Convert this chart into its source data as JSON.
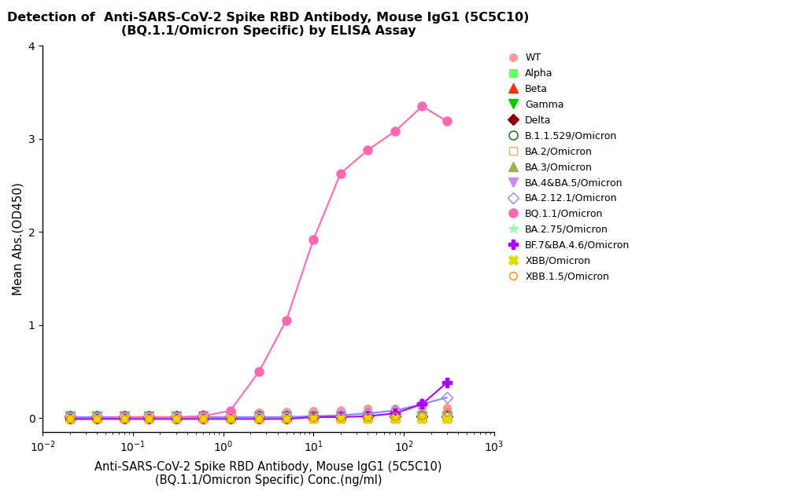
{
  "title_line1": "Detection of  Anti-SARS-CoV-2 Spike RBD Antibody, Mouse IgG1 (5C5C10)",
  "title_line2": "(BQ.1.1/Omicron Specific) by ELISA Assay",
  "xlabel_line1": "Anti-SARS-CoV-2 Spike RBD Antibody, Mouse IgG1 (5C5C10)",
  "xlabel_line2": "(BQ.1.1/Omicron Specific) Conc.(ng/ml)",
  "ylabel": "Mean Abs.(OD450)",
  "xmin": 0.01,
  "xmax": 1000,
  "ymin": -0.15,
  "ymax": 4.0,
  "series": [
    {
      "label": "WT",
      "color": "#FF9999",
      "marker": "o",
      "markersize": 7,
      "fillstyle": "full",
      "x": [
        0.02,
        0.04,
        0.08,
        0.15,
        0.3,
        0.6,
        1.2,
        2.5,
        5,
        10,
        20,
        40,
        80,
        160,
        300
      ],
      "y": [
        0.02,
        0.02,
        0.02,
        0.02,
        0.03,
        0.04,
        0.05,
        0.06,
        0.07,
        0.08,
        0.09,
        0.1,
        0.1,
        0.11,
        0.11
      ],
      "fit": false
    },
    {
      "label": "Alpha",
      "color": "#66FF66",
      "marker": "s",
      "markersize": 7,
      "fillstyle": "full",
      "x": [
        0.02,
        0.04,
        0.08,
        0.15,
        0.3,
        0.6,
        1.2,
        2.5,
        5,
        10,
        20,
        40,
        80,
        160,
        300
      ],
      "y": [
        0.02,
        0.02,
        0.02,
        0.02,
        0.02,
        0.02,
        0.03,
        0.03,
        0.03,
        0.03,
        0.03,
        0.03,
        0.03,
        0.03,
        0.03
      ],
      "fit": false
    },
    {
      "label": "Beta",
      "color": "#FF3300",
      "marker": "^",
      "markersize": 8,
      "fillstyle": "full",
      "x": [
        0.02,
        0.04,
        0.08,
        0.15,
        0.3,
        0.6,
        1.2,
        2.5,
        5,
        10,
        20,
        40,
        80,
        160,
        300
      ],
      "y": [
        0.02,
        0.02,
        0.02,
        0.02,
        0.02,
        0.02,
        0.02,
        0.02,
        0.02,
        0.02,
        0.02,
        0.02,
        0.02,
        0.02,
        0.02
      ],
      "fit": false
    },
    {
      "label": "Gamma",
      "color": "#00CC00",
      "marker": "v",
      "markersize": 8,
      "fillstyle": "full",
      "x": [
        0.02,
        0.04,
        0.08,
        0.15,
        0.3,
        0.6,
        1.2,
        2.5,
        5,
        10,
        20,
        40,
        80,
        160,
        300
      ],
      "y": [
        0.02,
        0.02,
        0.02,
        0.02,
        0.02,
        0.02,
        0.02,
        0.02,
        0.02,
        0.02,
        0.02,
        0.02,
        0.02,
        0.02,
        0.02
      ],
      "fit": false
    },
    {
      "label": "Delta",
      "color": "#880000",
      "marker": "D",
      "markersize": 7,
      "fillstyle": "full",
      "x": [
        0.02,
        0.04,
        0.08,
        0.15,
        0.3,
        0.6,
        1.2,
        2.5,
        5,
        10,
        20,
        40,
        80,
        160,
        300
      ],
      "y": [
        0.02,
        0.02,
        0.02,
        0.02,
        0.02,
        0.02,
        0.02,
        0.02,
        0.02,
        0.02,
        0.02,
        0.02,
        0.02,
        0.02,
        0.02
      ],
      "fit": false
    },
    {
      "label": "B.1.1.529/Omicron",
      "color": "#006600",
      "marker": "o",
      "markersize": 8,
      "fillstyle": "none",
      "x": [
        0.02,
        0.04,
        0.08,
        0.15,
        0.3,
        0.6,
        1.2,
        2.5,
        5,
        10,
        20,
        40,
        80,
        160,
        300
      ],
      "y": [
        0.02,
        0.02,
        0.02,
        0.02,
        0.02,
        0.02,
        0.02,
        0.02,
        0.02,
        0.02,
        0.02,
        0.02,
        0.02,
        0.02,
        0.02
      ],
      "fit": false
    },
    {
      "label": "BA.2/Omicron",
      "color": "#FFAA55",
      "marker": "s",
      "markersize": 7,
      "fillstyle": "none",
      "x": [
        0.02,
        0.04,
        0.08,
        0.15,
        0.3,
        0.6,
        1.2,
        2.5,
        5,
        10,
        20,
        40,
        80,
        160,
        300
      ],
      "y": [
        -0.01,
        -0.01,
        -0.01,
        -0.01,
        -0.01,
        -0.01,
        -0.01,
        -0.01,
        -0.01,
        -0.01,
        -0.01,
        -0.01,
        -0.01,
        -0.01,
        -0.01
      ],
      "fit": false
    },
    {
      "label": "BA.3/Omicron",
      "color": "#AAAA55",
      "marker": "^",
      "markersize": 8,
      "fillstyle": "full",
      "x": [
        0.02,
        0.04,
        0.08,
        0.15,
        0.3,
        0.6,
        1.2,
        2.5,
        5,
        10,
        20,
        40,
        80,
        160,
        300
      ],
      "y": [
        0.01,
        0.01,
        0.01,
        0.01,
        0.01,
        0.01,
        0.01,
        0.01,
        0.01,
        0.01,
        0.01,
        0.01,
        0.01,
        0.01,
        0.01
      ],
      "fit": false
    },
    {
      "label": "BA.4&BA.5/Omicron",
      "color": "#CC88FF",
      "marker": "v",
      "markersize": 8,
      "fillstyle": "full",
      "x": [
        0.02,
        0.04,
        0.08,
        0.15,
        0.3,
        0.6,
        1.2,
        2.5,
        5,
        10,
        20,
        40,
        80,
        160,
        300
      ],
      "y": [
        0.01,
        0.01,
        0.01,
        0.01,
        0.01,
        0.01,
        0.01,
        0.01,
        0.01,
        0.01,
        0.01,
        0.01,
        0.01,
        0.01,
        0.01
      ],
      "fit": false
    },
    {
      "label": "BA.2.12.1/Omicron",
      "color": "#8888FF",
      "marker": "D",
      "markersize": 7,
      "fillstyle": "none",
      "x": [
        0.02,
        0.04,
        0.08,
        0.15,
        0.3,
        0.6,
        1.2,
        2.5,
        5,
        10,
        20,
        40,
        80,
        160,
        300
      ],
      "y": [
        0.01,
        0.01,
        0.01,
        0.01,
        0.01,
        0.01,
        0.01,
        0.01,
        0.01,
        0.02,
        0.03,
        0.05,
        0.08,
        0.15,
        0.22
      ],
      "fit": true
    },
    {
      "label": "BQ.1.1/Omicron",
      "color": "#FF69B4",
      "marker": "o",
      "markersize": 8,
      "fillstyle": "full",
      "x": [
        0.02,
        0.04,
        0.08,
        0.15,
        0.3,
        0.6,
        1.2,
        2.5,
        5,
        10,
        20,
        40,
        80,
        160,
        300
      ],
      "y": [
        -0.01,
        -0.01,
        0.01,
        0.01,
        0.01,
        0.02,
        0.08,
        0.5,
        1.05,
        1.92,
        2.63,
        2.88,
        3.08,
        3.35,
        3.19
      ],
      "fit": true
    },
    {
      "label": "BA.2.75/Omicron",
      "color": "#99FFAA",
      "marker": "*",
      "markersize": 9,
      "fillstyle": "full",
      "x": [
        0.02,
        0.04,
        0.08,
        0.15,
        0.3,
        0.6,
        1.2,
        2.5,
        5,
        10,
        20,
        40,
        80,
        160,
        300
      ],
      "y": [
        0.01,
        0.01,
        0.01,
        0.01,
        0.01,
        0.01,
        0.01,
        0.01,
        0.01,
        0.01,
        0.01,
        0.01,
        0.01,
        0.01,
        0.01
      ],
      "fit": false
    },
    {
      "label": "BF.7&BA.4.6/Omicron",
      "color": "#AA00FF",
      "marker": "P",
      "markersize": 8,
      "fillstyle": "full",
      "x": [
        0.02,
        0.04,
        0.08,
        0.15,
        0.3,
        0.6,
        1.2,
        2.5,
        5,
        10,
        20,
        40,
        80,
        160,
        300
      ],
      "y": [
        -0.01,
        -0.01,
        -0.01,
        -0.01,
        -0.01,
        -0.01,
        -0.01,
        -0.01,
        -0.01,
        0.01,
        0.01,
        0.02,
        0.05,
        0.15,
        0.38
      ],
      "fit": true
    },
    {
      "label": "XBB/Omicron",
      "color": "#DDDD00",
      "marker": "X",
      "markersize": 8,
      "fillstyle": "full",
      "x": [
        0.02,
        0.04,
        0.08,
        0.15,
        0.3,
        0.6,
        1.2,
        2.5,
        5,
        10,
        20,
        40,
        80,
        160,
        300
      ],
      "y": [
        -0.01,
        -0.01,
        -0.01,
        -0.01,
        -0.01,
        -0.01,
        -0.01,
        -0.01,
        -0.01,
        -0.01,
        -0.01,
        -0.01,
        -0.01,
        -0.01,
        -0.01
      ],
      "fit": false
    },
    {
      "label": "XBB.1.5/Omicron",
      "color": "#FF8800",
      "marker": "o",
      "markersize": 7,
      "fillstyle": "none",
      "x": [
        0.02,
        0.04,
        0.08,
        0.15,
        0.3,
        0.6,
        1.2,
        2.5,
        5,
        10,
        20,
        40,
        80,
        160,
        300
      ],
      "y": [
        -0.01,
        -0.01,
        -0.01,
        -0.01,
        -0.01,
        -0.01,
        -0.01,
        -0.01,
        -0.01,
        0.01,
        0.01,
        0.01,
        0.02,
        0.03,
        0.06
      ],
      "fit": false
    }
  ]
}
